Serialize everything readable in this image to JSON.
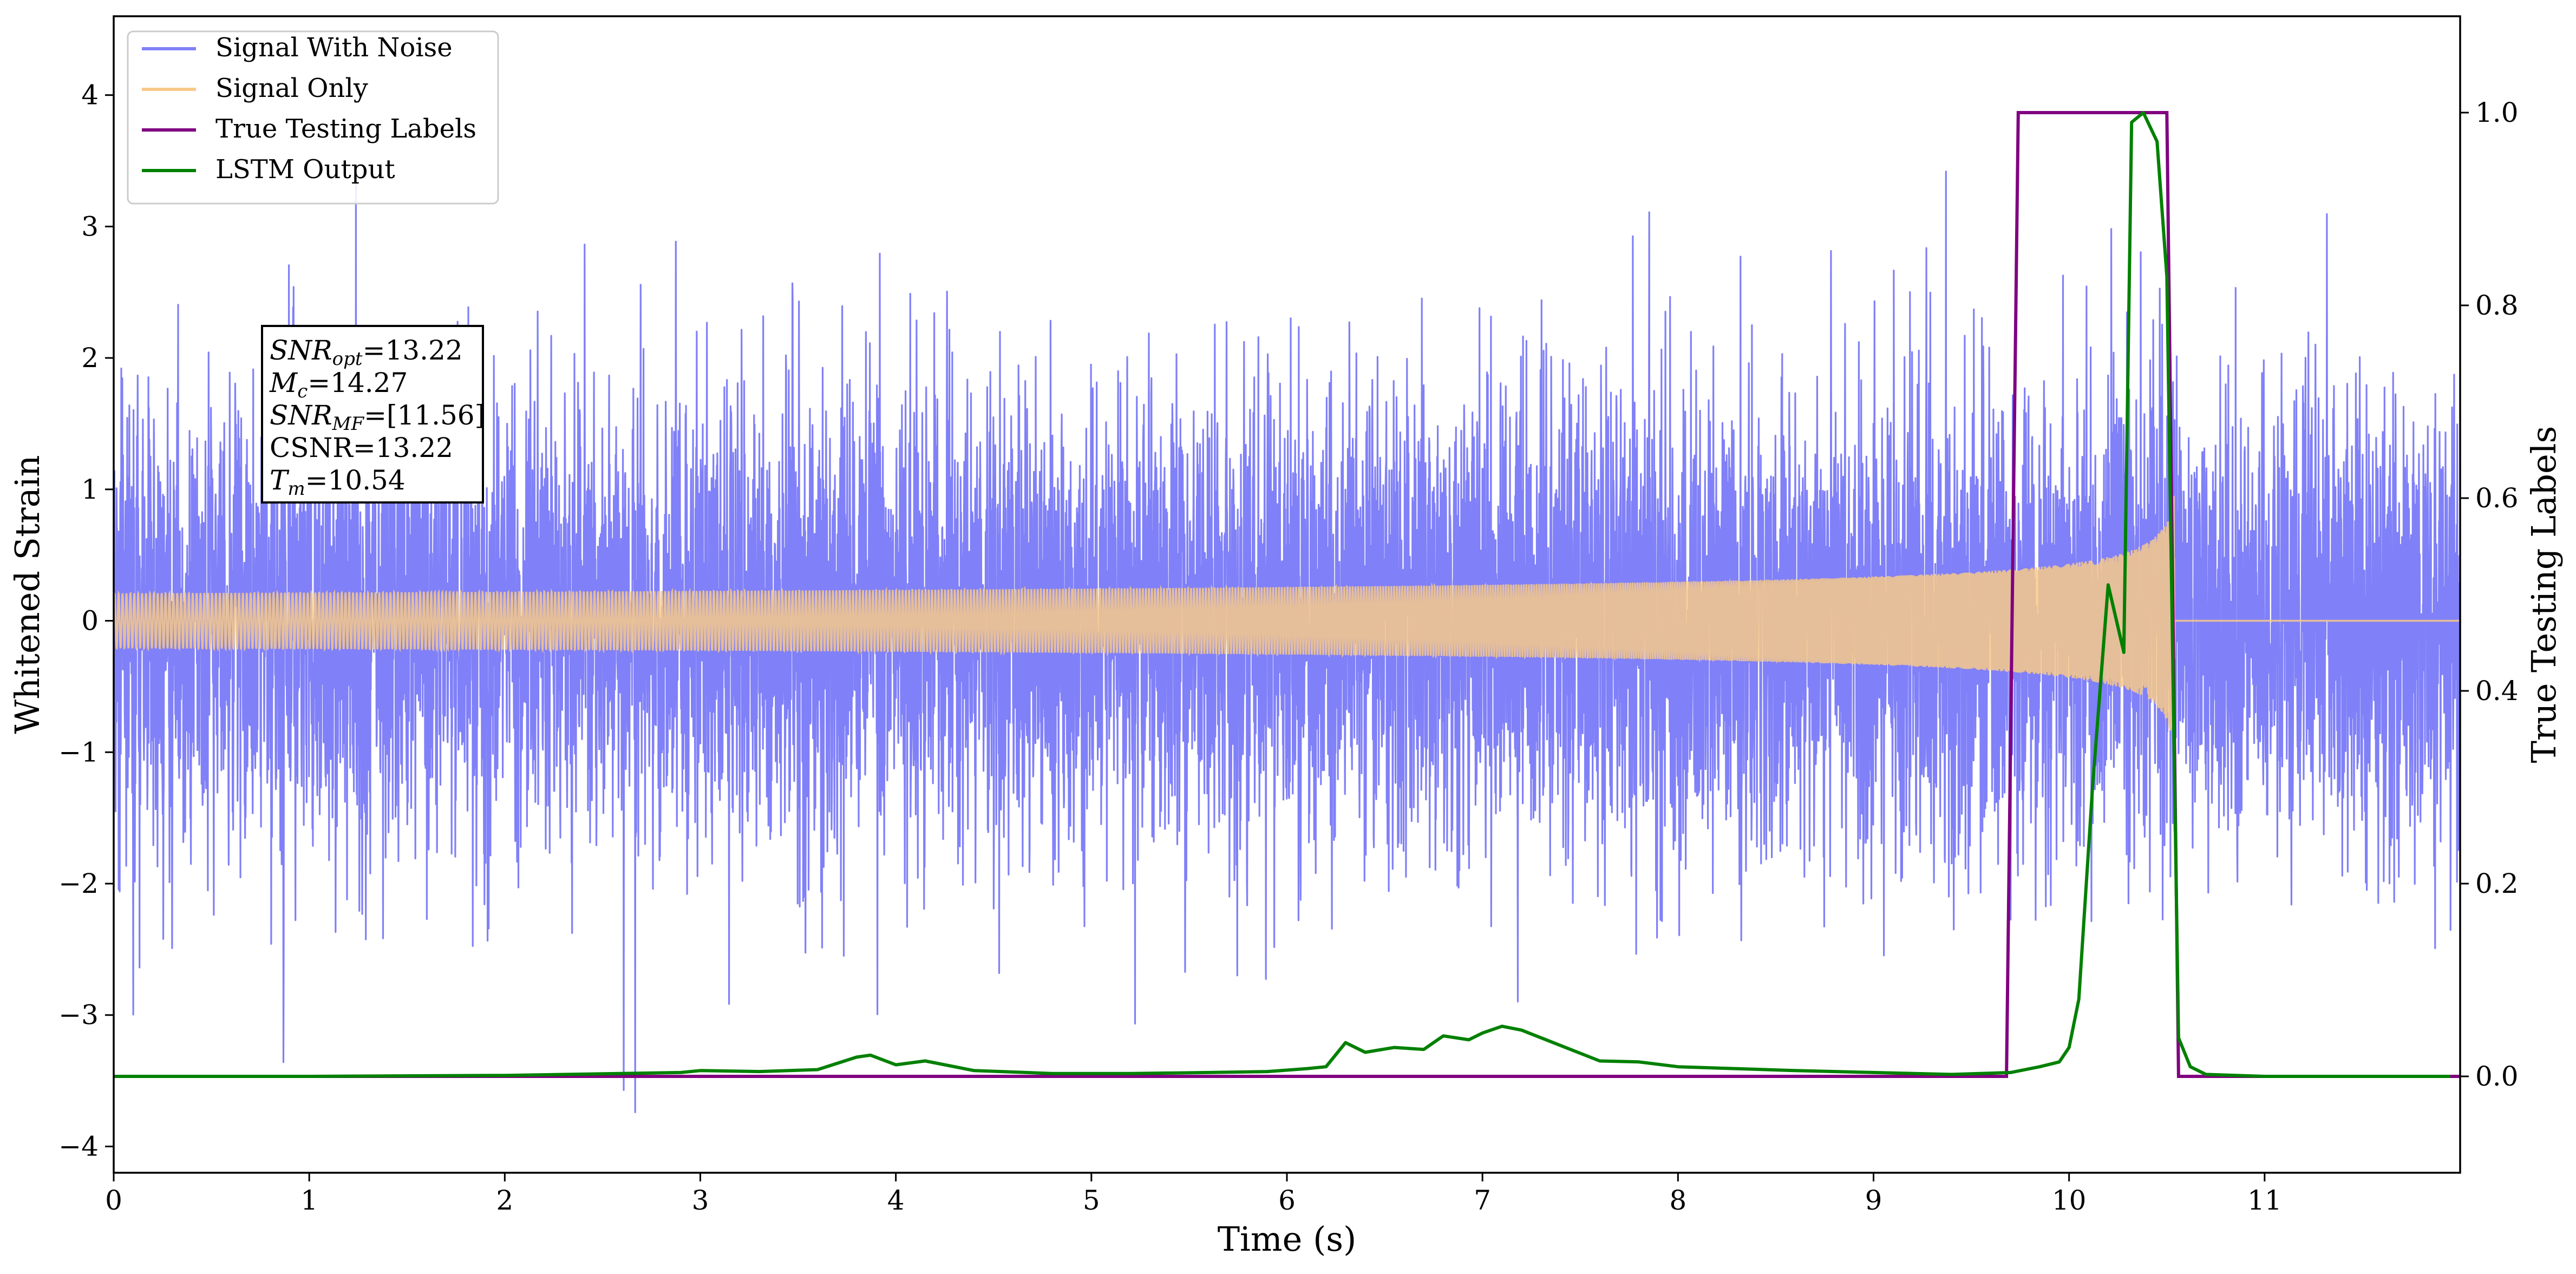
{
  "chart_data": {
    "type": "line",
    "xlabel": "Time (s)",
    "ylabel": "Whitened Strain",
    "y2label": "True Testing Labels",
    "xlim": [
      0,
      12
    ],
    "ylim": [
      -4.2,
      4.6
    ],
    "y2lim": [
      -0.1,
      1.1
    ],
    "xticks": [
      "0",
      "1",
      "2",
      "3",
      "4",
      "5",
      "6",
      "7",
      "8",
      "9",
      "10",
      "11"
    ],
    "yticks": [
      "−4",
      "−3",
      "−2",
      "−1",
      "0",
      "1",
      "2",
      "3",
      "4"
    ],
    "y2ticks": [
      "0.0",
      "0.2",
      "0.4",
      "0.6",
      "0.8",
      "1.0"
    ],
    "legend_position": "top-left",
    "series": [
      {
        "name": "Signal With Noise",
        "color": "#8080f8",
        "axis": "left",
        "kind": "noise",
        "description_values": {
          "std": 0.85,
          "max": 3.46,
          "min": -3.6
        }
      },
      {
        "name": "Signal Only",
        "color": "#f7c98a",
        "axis": "left",
        "kind": "chirp",
        "chirp": {
          "start": 0.0,
          "merger": 10.54,
          "peak_amplitude": 1.0,
          "start_amplitude": 0.03
        }
      },
      {
        "name": "True Testing Labels",
        "color": "#800080",
        "axis": "right",
        "x": [
          0,
          9.68,
          9.74,
          10.5,
          10.56,
          12
        ],
        "y": [
          0,
          0,
          1,
          1,
          0,
          0
        ]
      },
      {
        "name": "LSTM Output",
        "color": "#008000",
        "axis": "right",
        "x": [
          0,
          1,
          2,
          2.9,
          3.0,
          3.3,
          3.6,
          3.8,
          3.87,
          4.0,
          4.15,
          4.4,
          4.8,
          5.2,
          5.6,
          5.9,
          6.1,
          6.2,
          6.3,
          6.4,
          6.55,
          6.7,
          6.8,
          6.93,
          7.0,
          7.1,
          7.2,
          7.3,
          7.45,
          7.6,
          7.8,
          8.0,
          8.3,
          8.6,
          9.0,
          9.4,
          9.7,
          9.85,
          9.95,
          10.0,
          10.05,
          10.12,
          10.2,
          10.28,
          10.32,
          10.38,
          10.45,
          10.5,
          10.56,
          10.62,
          10.7,
          11,
          11.5,
          11.95
        ],
        "y": [
          0,
          0,
          0.001,
          0.004,
          0.006,
          0.005,
          0.007,
          0.02,
          0.022,
          0.012,
          0.016,
          0.006,
          0.003,
          0.003,
          0.004,
          0.005,
          0.008,
          0.01,
          0.035,
          0.025,
          0.03,
          0.028,
          0.042,
          0.038,
          0.045,
          0.052,
          0.048,
          0.04,
          0.028,
          0.016,
          0.015,
          0.01,
          0.008,
          0.006,
          0.004,
          0.002,
          0.004,
          0.01,
          0.015,
          0.03,
          0.08,
          0.3,
          0.51,
          0.44,
          0.99,
          1.0,
          0.97,
          0.83,
          0.04,
          0.01,
          0.002,
          0.0,
          0.0,
          0.0
        ]
      }
    ],
    "annotation": {
      "lines": [
        {
          "sym": "SNR",
          "sub": "opt",
          "value": "=13.22"
        },
        {
          "sym": "M",
          "sub": "c",
          "value": "=14.27"
        },
        {
          "sym": "SNR",
          "sub": "MF",
          "value": "=[11.56]"
        },
        {
          "sym": "",
          "sub": "",
          "value": "CSNR=13.22"
        },
        {
          "sym": "T",
          "sub": "m",
          "value": "=10.54"
        }
      ]
    }
  }
}
